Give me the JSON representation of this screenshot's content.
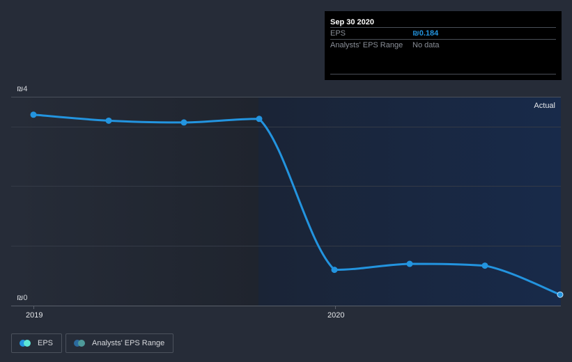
{
  "chart_data": {
    "type": "line",
    "title": "",
    "xlabel": "",
    "ylabel": "EPS",
    "currency_symbol": "₪",
    "ylim": [
      0,
      3.5
    ],
    "y_tick_labels": [
      "₪4",
      "₪0"
    ],
    "x_tick_labels": [
      "2019",
      "2020"
    ],
    "grid": true,
    "region_label": "Actual",
    "x": [
      "Dec 31 2018",
      "Mar 31 2019",
      "Jun 30 2019",
      "Sep 30 2019",
      "Dec 31 2019",
      "Mar 31 2020",
      "Jun 30 2020",
      "Sep 30 2020"
    ],
    "series": [
      {
        "name": "EPS",
        "color": "#2394df",
        "values": [
          3.2,
          3.1,
          3.07,
          3.13,
          0.6,
          0.7,
          0.67,
          0.184
        ]
      },
      {
        "name": "Analysts' EPS Range",
        "color": "#2b6f8f",
        "values": []
      }
    ],
    "legend_position": "bottom-left"
  },
  "tooltip": {
    "date": "Sep 30 2020",
    "rows": [
      {
        "label": "EPS",
        "value": "₪0.184"
      },
      {
        "label": "Analysts' EPS Range",
        "value": "No data"
      }
    ]
  },
  "axis": {
    "y_top": "₪4",
    "y_bottom": "₪0",
    "x_2019": "2019",
    "x_2020": "2020",
    "region": "Actual"
  },
  "legend": {
    "items": [
      {
        "label": "EPS",
        "colors": [
          "#2394df",
          "#5de6d6"
        ]
      },
      {
        "label": "Analysts' EPS Range",
        "colors": [
          "#2b6a9e",
          "#4e9a9a"
        ]
      }
    ]
  },
  "colors": {
    "background": "#262c38",
    "actual_region": "#1b2a44",
    "line": "#2394df",
    "grid": "#3a404b"
  }
}
